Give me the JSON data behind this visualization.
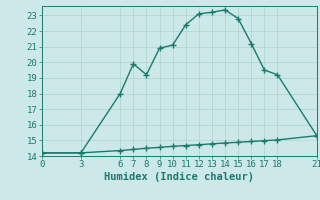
{
  "xlabel": "Humidex (Indice chaleur)",
  "bg_color": "#cce8e8",
  "grid_color": "#b0d8d0",
  "line_color": "#1a7a6e",
  "line1_x": [
    0,
    3,
    6,
    7,
    8,
    9,
    10,
    11,
    12,
    13,
    14,
    15,
    16,
    17,
    18,
    21
  ],
  "line1_y": [
    14.2,
    14.2,
    18.0,
    19.9,
    19.2,
    20.9,
    21.1,
    22.4,
    23.1,
    23.2,
    23.35,
    22.8,
    21.2,
    19.5,
    19.2,
    15.3
  ],
  "line2_x": [
    0,
    3,
    6,
    7,
    8,
    9,
    10,
    11,
    12,
    13,
    14,
    15,
    16,
    17,
    18,
    21
  ],
  "line2_y": [
    14.2,
    14.2,
    14.35,
    14.42,
    14.5,
    14.55,
    14.62,
    14.67,
    14.72,
    14.78,
    14.83,
    14.88,
    14.93,
    14.98,
    15.03,
    15.3
  ],
  "xticks": [
    0,
    3,
    6,
    7,
    8,
    9,
    10,
    11,
    12,
    13,
    14,
    15,
    16,
    17,
    18,
    21
  ],
  "yticks": [
    14,
    15,
    16,
    17,
    18,
    19,
    20,
    21,
    22,
    23
  ],
  "xlim": [
    0,
    21
  ],
  "ylim": [
    14,
    23.6
  ],
  "marker": "+",
  "marker_size": 5,
  "linewidth": 1.0,
  "tick_fontsize": 6.5,
  "xlabel_fontsize": 7.5
}
